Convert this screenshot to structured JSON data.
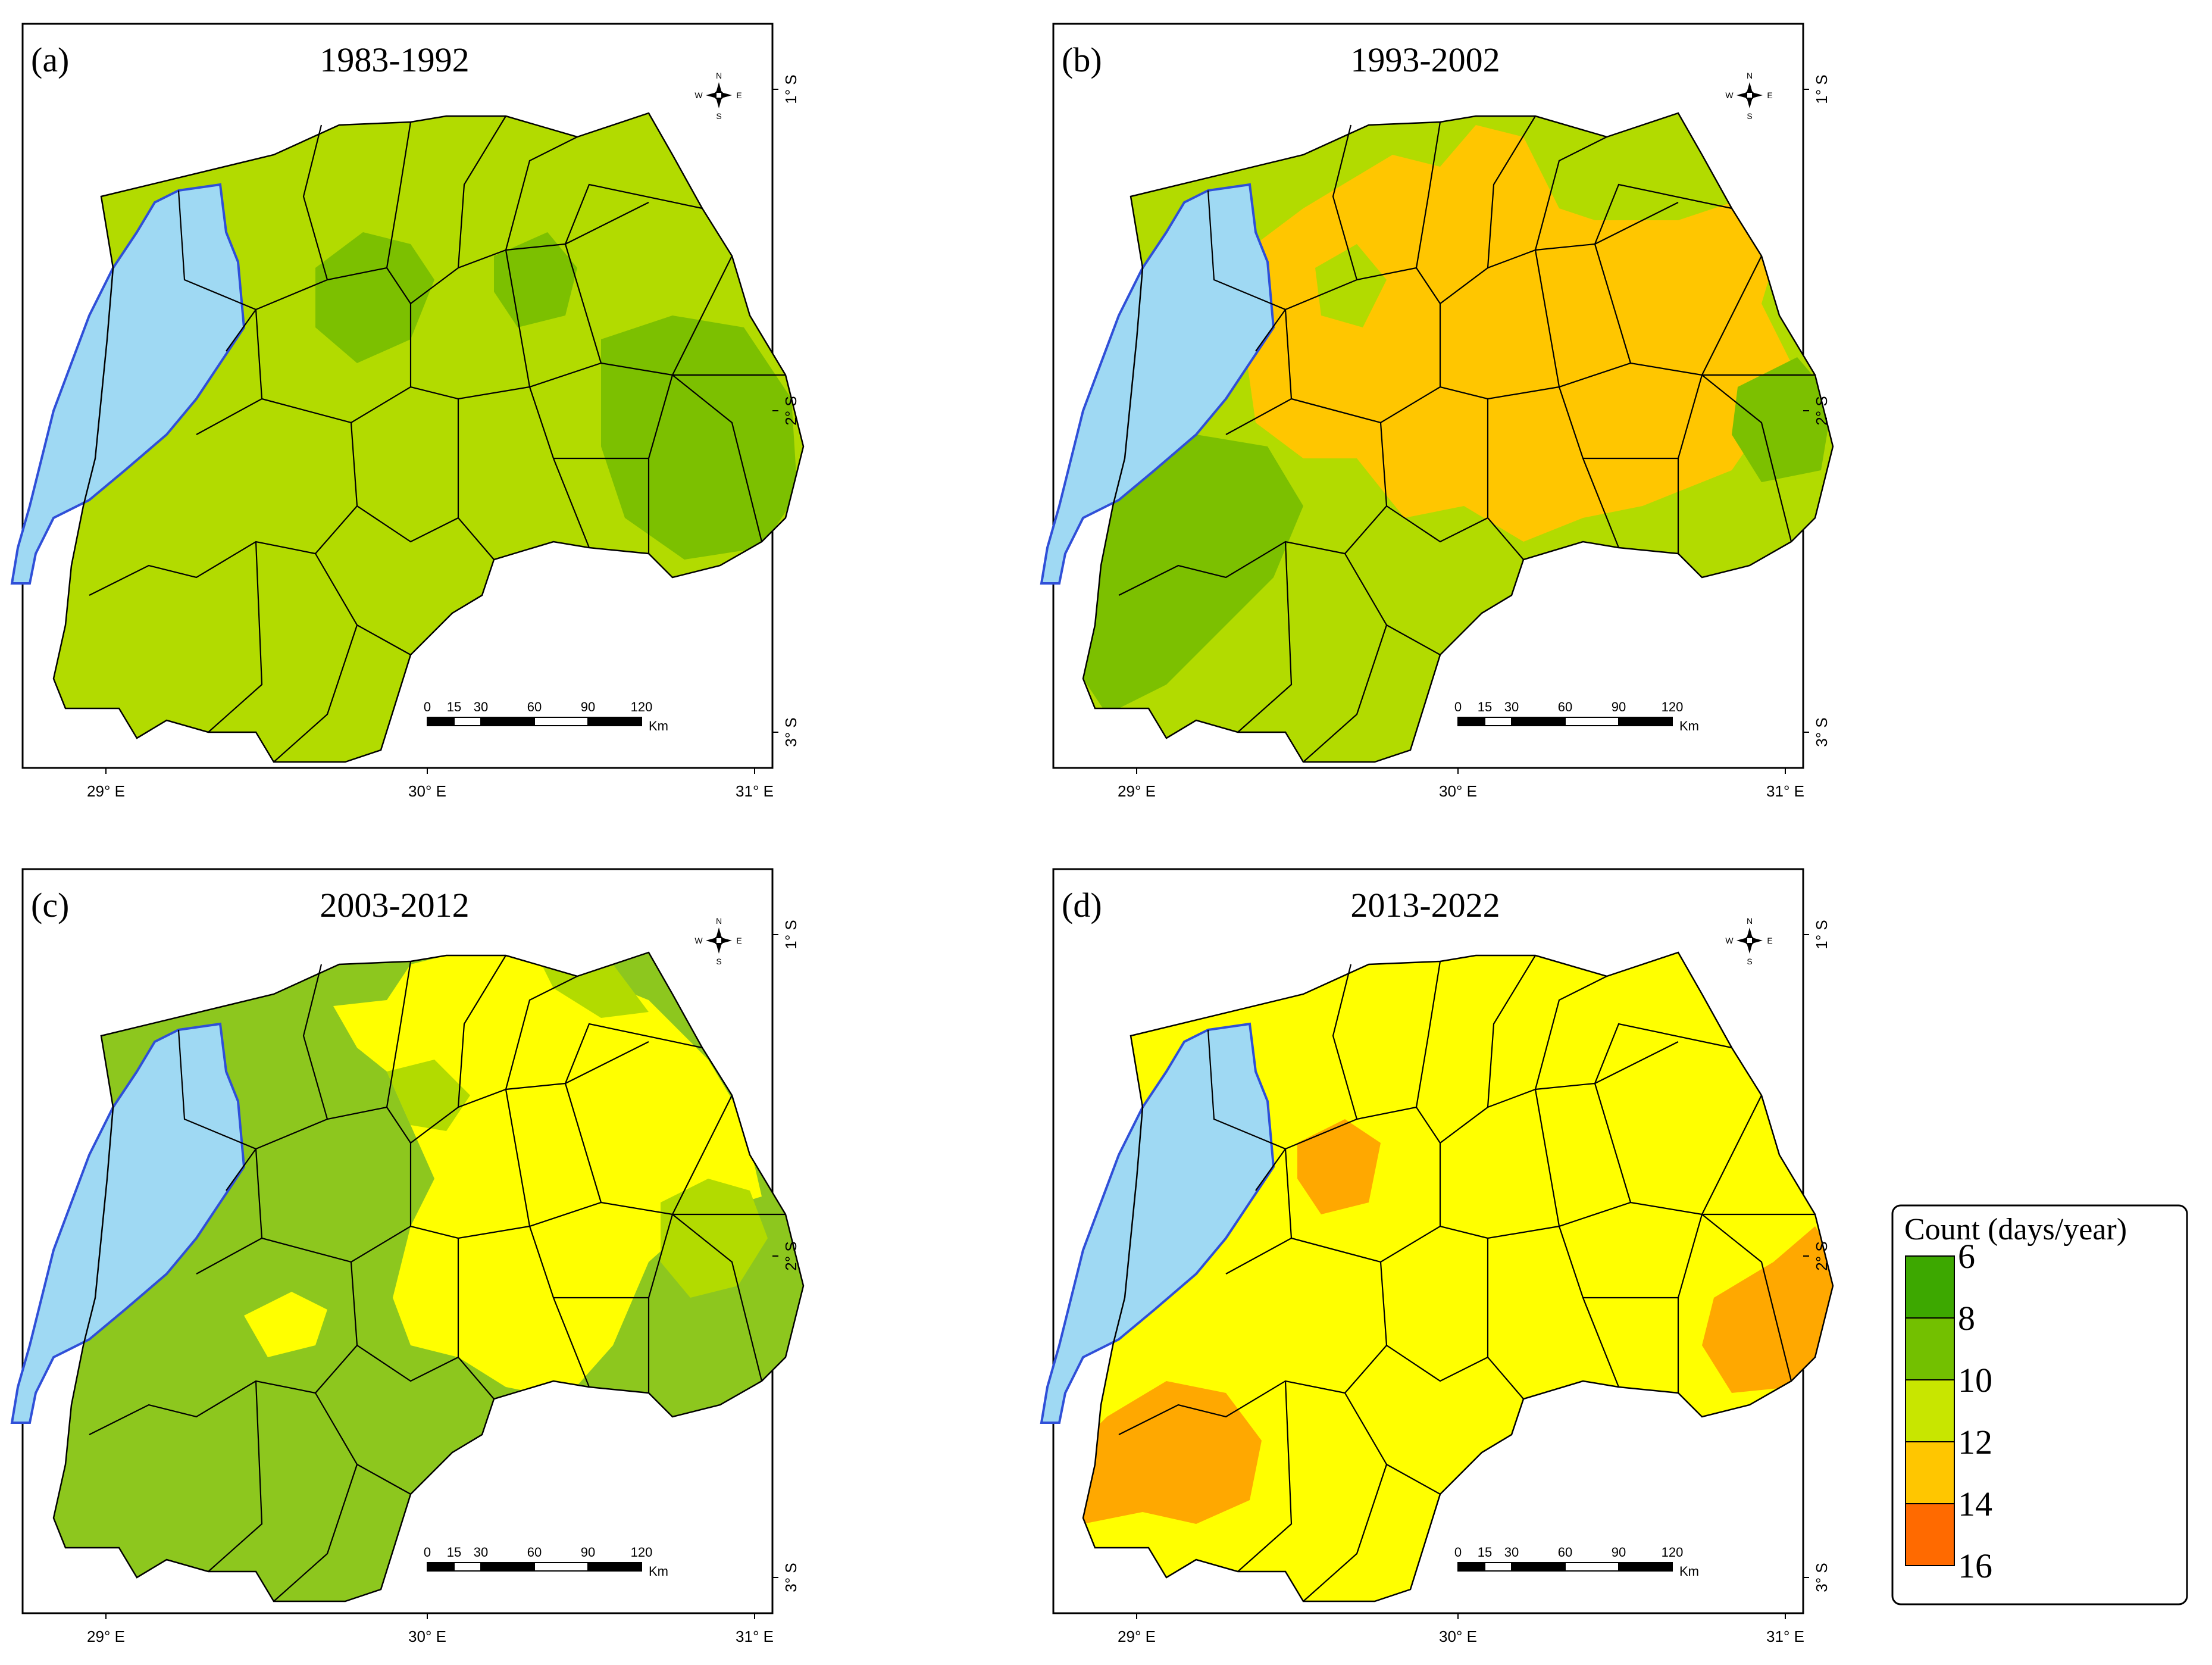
{
  "panels": [
    {
      "id": "a",
      "label": "(a)",
      "title": "1983-1992",
      "colors": {
        "base": "#B2DB00",
        "zone": "#7CC000"
      }
    },
    {
      "id": "b",
      "label": "(b)",
      "title": "1993-2002",
      "colors": {
        "base": "#B2DB00",
        "zone": "#FFC600",
        "alt": "#7CC000"
      }
    },
    {
      "id": "c",
      "label": "(c)",
      "title": "2003-2012",
      "colors": {
        "base": "#8DC71E",
        "zone": "#FFFF00",
        "alt": "#B2DB00"
      }
    },
    {
      "id": "d",
      "label": "(d)",
      "title": "2013-2022",
      "colors": {
        "base": "#FFFF00",
        "zone": "#FFA800"
      }
    }
  ],
  "axes": {
    "x_ticks": [
      "29° E",
      "30° E",
      "31° E"
    ],
    "y_ticks": [
      "1° S",
      "2° S",
      "3° S"
    ]
  },
  "scalebar": {
    "ticks": [
      "0",
      "15",
      "30",
      "60",
      "90",
      "120"
    ],
    "unit": "Km"
  },
  "north_arrow": {
    "n": "N",
    "s": "S",
    "e": "E",
    "w": "W"
  },
  "colors": {
    "lake": "#9FD9F3",
    "lake_outline": "#2F4FD8",
    "border": "#000000"
  },
  "legend": {
    "title": "Count (days/year)",
    "items": [
      {
        "label": "6",
        "color": "#3DA800"
      },
      {
        "label": "8",
        "color": "#73C000"
      },
      {
        "label": "10",
        "color": "#C8E600"
      },
      {
        "label": "12",
        "color": "#FFC600"
      },
      {
        "label": "14",
        "color": "#FF6A00"
      },
      {
        "label": "16",
        "color": ""
      }
    ]
  }
}
